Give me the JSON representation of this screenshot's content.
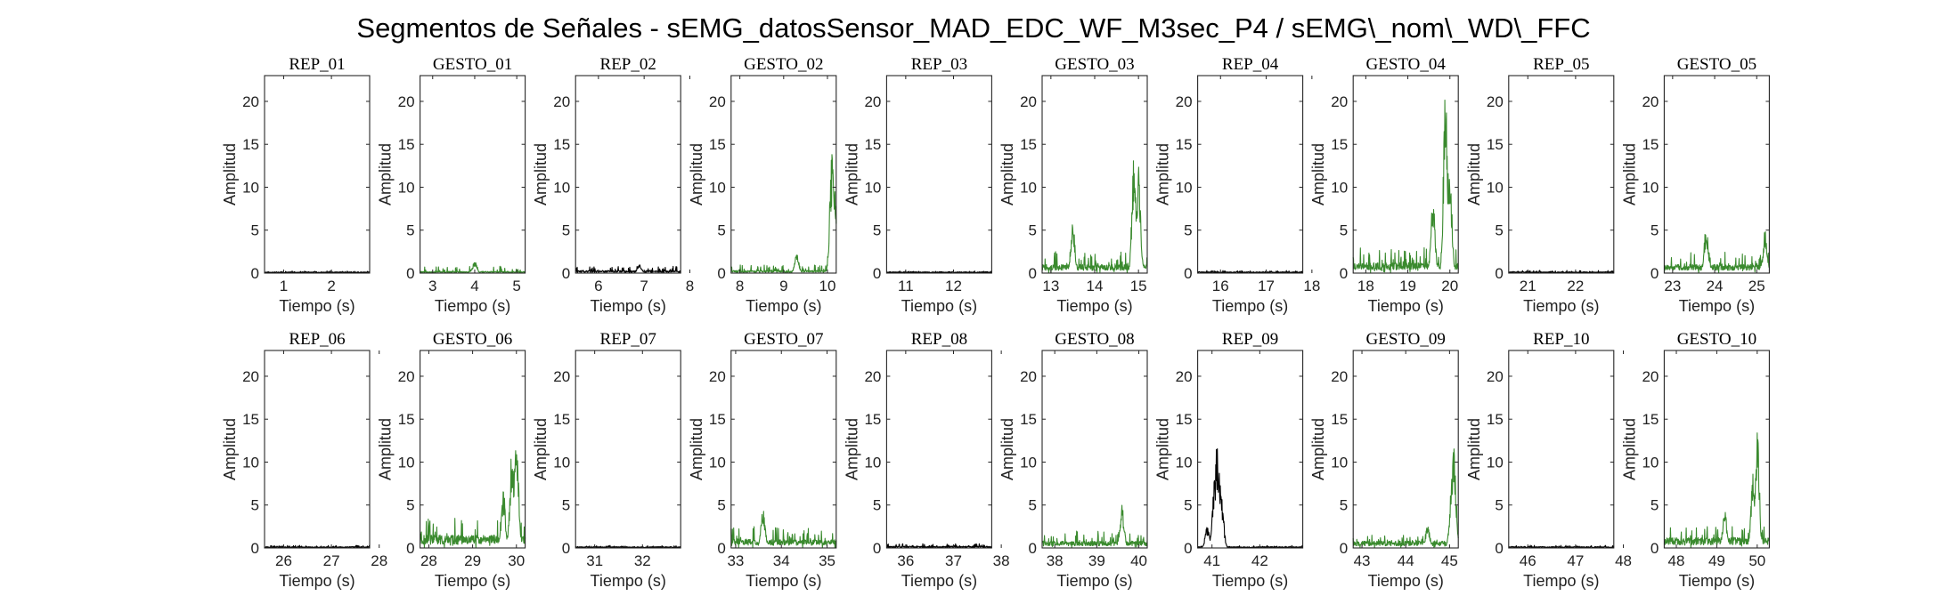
{
  "figure": {
    "title": "Segmentos de Señales - sEMG_datosSensor_MAD_EDC_WF_M3sec_P4 / sEMG\\_nom\\_WD\\_FFC"
  },
  "chart_data": {
    "type": "line",
    "grid": false,
    "xlabel": "Tiempo (s)",
    "ylabel": "Amplitud",
    "ylim": [
      0,
      23
    ],
    "yticks": [
      0,
      5,
      10,
      15,
      20
    ],
    "colors": {
      "rep": "#000000",
      "gesto": "#3a8a2e"
    },
    "panels": [
      {
        "title": "REP_01",
        "kind": "rep",
        "xlim": [
          0.6,
          2.8
        ],
        "xticks": [
          1,
          2
        ],
        "base": 0.15,
        "noise": 0.25,
        "peaks": []
      },
      {
        "title": "GESTO_01",
        "kind": "gesto",
        "xlim": [
          2.7,
          5.2
        ],
        "xticks": [
          3,
          4,
          5
        ],
        "base": 0.2,
        "noise": 0.8,
        "peaks": [
          {
            "x": 4.0,
            "v": 1.4
          }
        ]
      },
      {
        "title": "REP_02",
        "kind": "rep",
        "xlim": [
          5.5,
          7.8
        ],
        "xticks": [
          6,
          7,
          8
        ],
        "base": 0.3,
        "noise": 0.8,
        "peaks": [
          {
            "x": 6.9,
            "v": 1.0
          }
        ]
      },
      {
        "title": "GESTO_02",
        "kind": "gesto",
        "xlim": [
          7.8,
          10.2
        ],
        "xticks": [
          8,
          9,
          10
        ],
        "base": 0.3,
        "noise": 1.0,
        "peaks": [
          {
            "x": 9.3,
            "v": 2.2
          },
          {
            "x": 10.1,
            "v": 14.0
          },
          {
            "x": 10.15,
            "v": 11.5
          }
        ]
      },
      {
        "title": "REP_03",
        "kind": "rep",
        "xlim": [
          10.6,
          12.8
        ],
        "xticks": [
          11,
          12
        ],
        "base": 0.15,
        "noise": 0.25,
        "peaks": []
      },
      {
        "title": "GESTO_03",
        "kind": "gesto",
        "xlim": [
          12.8,
          15.2
        ],
        "xticks": [
          13,
          14,
          15
        ],
        "base": 1.0,
        "noise": 2.5,
        "peaks": [
          {
            "x": 13.5,
            "v": 6.0
          },
          {
            "x": 14.9,
            "v": 14.3
          },
          {
            "x": 15.0,
            "v": 12.5
          }
        ]
      },
      {
        "title": "REP_04",
        "kind": "rep",
        "xlim": [
          15.5,
          17.8
        ],
        "xticks": [
          16,
          17,
          18
        ],
        "base": 0.15,
        "noise": 0.3,
        "peaks": []
      },
      {
        "title": "GESTO_04",
        "kind": "gesto",
        "xlim": [
          17.7,
          20.2
        ],
        "xticks": [
          18,
          19,
          20
        ],
        "base": 1.2,
        "noise": 3.0,
        "peaks": [
          {
            "x": 19.9,
            "v": 23.0
          },
          {
            "x": 20.0,
            "v": 12.8
          },
          {
            "x": 19.6,
            "v": 9.0
          }
        ]
      },
      {
        "title": "REP_05",
        "kind": "rep",
        "xlim": [
          20.6,
          22.8
        ],
        "xticks": [
          21,
          22
        ],
        "base": 0.15,
        "noise": 0.3,
        "peaks": []
      },
      {
        "title": "GESTO_05",
        "kind": "gesto",
        "xlim": [
          22.8,
          25.3
        ],
        "xticks": [
          23,
          24,
          25
        ],
        "base": 1.0,
        "noise": 2.5,
        "peaks": [
          {
            "x": 23.8,
            "v": 5.5
          },
          {
            "x": 25.2,
            "v": 5.0
          }
        ]
      },
      {
        "title": "REP_06",
        "kind": "rep",
        "xlim": [
          25.6,
          27.8
        ],
        "xticks": [
          26,
          27,
          28
        ],
        "base": 0.15,
        "noise": 0.3,
        "peaks": []
      },
      {
        "title": "GESTO_06",
        "kind": "gesto",
        "xlim": [
          27.8,
          30.2
        ],
        "xticks": [
          28,
          29,
          30
        ],
        "base": 1.5,
        "noise": 3.5,
        "peaks": [
          {
            "x": 30.0,
            "v": 14.2
          },
          {
            "x": 29.9,
            "v": 12.0
          },
          {
            "x": 29.7,
            "v": 7.0
          }
        ]
      },
      {
        "title": "REP_07",
        "kind": "rep",
        "xlim": [
          30.6,
          32.8
        ],
        "xticks": [
          31,
          32
        ],
        "base": 0.15,
        "noise": 0.3,
        "peaks": []
      },
      {
        "title": "GESTO_07",
        "kind": "gesto",
        "xlim": [
          32.9,
          35.2
        ],
        "xticks": [
          33,
          34,
          35
        ],
        "base": 1.0,
        "noise": 2.5,
        "peaks": [
          {
            "x": 33.6,
            "v": 4.9
          }
        ]
      },
      {
        "title": "REP_08",
        "kind": "rep",
        "xlim": [
          35.6,
          37.8
        ],
        "xticks": [
          36,
          37,
          38
        ],
        "base": 0.2,
        "noise": 0.5,
        "peaks": []
      },
      {
        "title": "GESTO_08",
        "kind": "gesto",
        "xlim": [
          37.7,
          40.2
        ],
        "xticks": [
          38,
          39,
          40
        ],
        "base": 0.8,
        "noise": 2.0,
        "peaks": [
          {
            "x": 39.6,
            "v": 5.0
          }
        ]
      },
      {
        "title": "REP_09",
        "kind": "rep",
        "xlim": [
          40.7,
          42.9
        ],
        "xticks": [
          41,
          42
        ],
        "base": 0.15,
        "noise": 0.3,
        "peaks": [
          {
            "x": 40.9,
            "v": 2.5
          },
          {
            "x": 41.05,
            "v": 8.0
          },
          {
            "x": 41.1,
            "v": 12.2
          },
          {
            "x": 41.15,
            "v": 10.0
          },
          {
            "x": 41.2,
            "v": 6.0
          }
        ]
      },
      {
        "title": "GESTO_09",
        "kind": "gesto",
        "xlim": [
          42.8,
          45.2
        ],
        "xticks": [
          43,
          44,
          45
        ],
        "base": 0.8,
        "noise": 1.5,
        "peaks": [
          {
            "x": 45.1,
            "v": 12.3
          },
          {
            "x": 45.05,
            "v": 8.0
          },
          {
            "x": 44.5,
            "v": 2.8
          }
        ]
      },
      {
        "title": "REP_10",
        "kind": "rep",
        "xlim": [
          45.6,
          47.8
        ],
        "xticks": [
          46,
          47,
          48
        ],
        "base": 0.15,
        "noise": 0.3,
        "peaks": []
      },
      {
        "title": "GESTO_10",
        "kind": "gesto",
        "xlim": [
          47.7,
          50.3
        ],
        "xticks": [
          48,
          49,
          50
        ],
        "base": 1.2,
        "noise": 2.5,
        "peaks": [
          {
            "x": 50.0,
            "v": 13.8
          },
          {
            "x": 49.9,
            "v": 9.0
          },
          {
            "x": 49.2,
            "v": 4.5
          }
        ]
      }
    ]
  }
}
